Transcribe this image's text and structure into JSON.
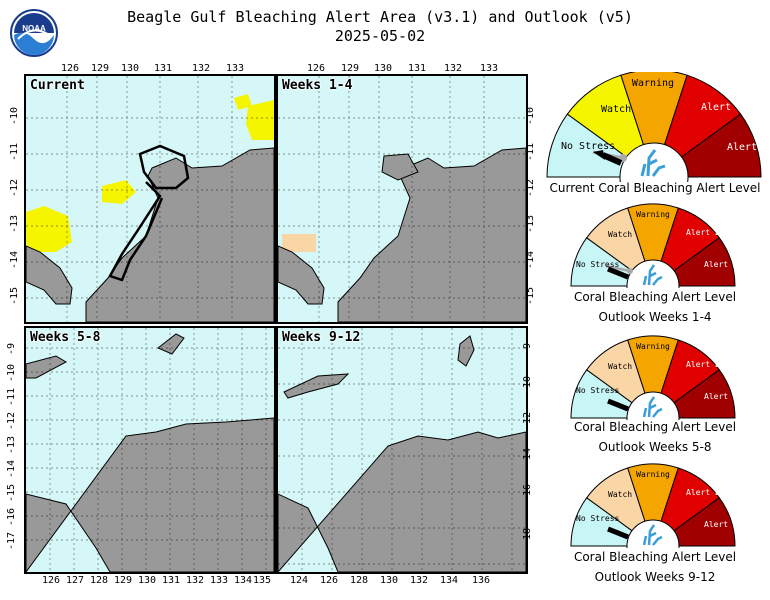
{
  "header": {
    "title": "Beagle Gulf Bleaching Alert Area (v3.1) and Outlook (v5)",
    "date": "2025-05-02",
    "logo_text": "NOAA"
  },
  "panels": [
    {
      "label": "Current",
      "top_ticks": [
        "126",
        "129",
        "130",
        "131",
        "132",
        "133"
      ],
      "left_ticks": [
        "-10",
        "-11",
        "-12",
        "-13",
        "-14",
        "-15"
      ]
    },
    {
      "label": "Weeks 1-4",
      "top_ticks": [
        "126",
        "129",
        "130",
        "131",
        "132",
        "133"
      ],
      "right_ticks": [
        "-10",
        "-11",
        "-12",
        "-13",
        "-14",
        "-15"
      ]
    },
    {
      "label": "Weeks 5-8",
      "left_ticks": [
        "-9",
        "-10",
        "-11",
        "-12",
        "-13",
        "-14",
        "-15",
        "-16",
        "-17"
      ],
      "bottom_ticks": [
        "126",
        "127",
        "128",
        "129",
        "130",
        "131",
        "132",
        "133",
        "134",
        "135"
      ]
    },
    {
      "label": "Weeks 9-12",
      "right_ticks": [
        "-9",
        "-10",
        "-12",
        "-14",
        "-16",
        "-18"
      ],
      "bottom_ticks": [
        "124",
        "126",
        "128",
        "130",
        "132",
        "134",
        "136"
      ]
    }
  ],
  "gauge_levels": [
    "No Stress",
    "Watch",
    "Warning",
    "Alert Level 1",
    "Alert Level 2"
  ],
  "gauges": [
    {
      "caption1": "Current Coral Bleaching Alert Level",
      "caption2": "",
      "indicator": "No Stress"
    },
    {
      "caption1": "Coral Bleaching Alert Level",
      "caption2": "Outlook Weeks 1-4",
      "indicator": "No Stress"
    },
    {
      "caption1": "Coral Bleaching Alert Level",
      "caption2": "Outlook Weeks 5-8",
      "indicator": "No Stress"
    },
    {
      "caption1": "Coral Bleaching Alert Level",
      "caption2": "Outlook Weeks 9-12",
      "indicator": "No Stress"
    }
  ],
  "colors": {
    "no_stress": "#c8f5f5",
    "watch": "#f5f500",
    "watch_outlook": "#fad5a5",
    "warning": "#f5a500",
    "alert1": "#e00000",
    "alert2": "#a00000",
    "ocean": "#d6f7f7",
    "land": "#999999"
  }
}
